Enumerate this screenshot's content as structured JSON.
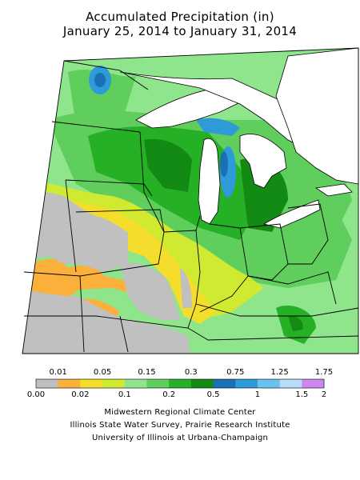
{
  "title": {
    "line1": "Accumulated Precipitation (in)",
    "line2": "January 25, 2014 to January 31, 2014"
  },
  "legend": {
    "bins": [
      {
        "color": "#c0c0c0"
      },
      {
        "color": "#fbb03b"
      },
      {
        "color": "#f5dd2c"
      },
      {
        "color": "#cfea31"
      },
      {
        "color": "#8fe58c"
      },
      {
        "color": "#5fce5c"
      },
      {
        "color": "#26b026"
      },
      {
        "color": "#138a13"
      },
      {
        "color": "#1a6fb5"
      },
      {
        "color": "#2f9ad8"
      },
      {
        "color": "#6cc0f0"
      },
      {
        "color": "#b6dcf7"
      },
      {
        "color": "#cc88f0"
      }
    ],
    "top_labels": [
      "0.01",
      "0.05",
      "0.15",
      "0.3",
      "0.75",
      "1.25",
      "1.75"
    ],
    "bottom_labels": [
      "0.00",
      "0.02",
      "0.1",
      "0.2",
      "0.5",
      "1",
      "1.5",
      "2"
    ]
  },
  "credits": {
    "line1": "Midwestern Regional Climate Center",
    "line2": "Illinois State Water Survey, Prairie Research Institute",
    "line3": "University of Illinois at Urbana-Champaign"
  },
  "colors": {
    "background": "#ffffff",
    "no_data": "#c0c0c0",
    "lake": "#ffffff",
    "boundary": "#000000"
  }
}
